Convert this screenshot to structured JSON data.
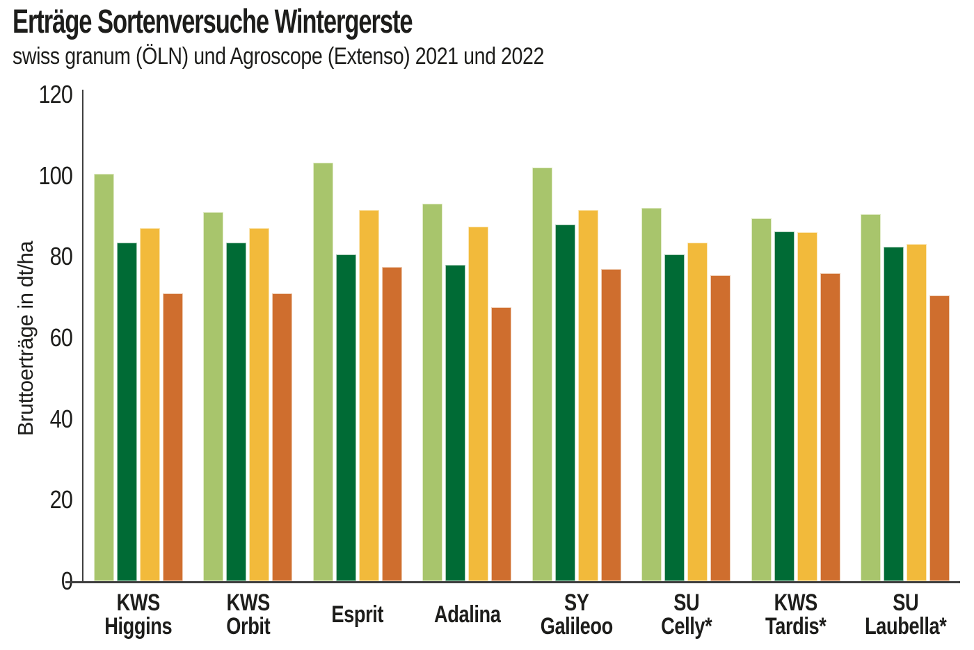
{
  "header": {
    "title": "Erträge Sortenversuche Wintergerste",
    "subtitle": "swiss granum (ÖLN) und Agroscope (Extenso) 2021 und 2022"
  },
  "colors": {
    "background": "#ffffff",
    "text": "#1d1d1b",
    "axis": "#3f3f3f",
    "bar_light_green": "#a8c56c",
    "bar_dark_green": "#006b35",
    "bar_yellow": "#f2ba3b",
    "bar_orange": "#cf6e2e"
  },
  "chart_data": {
    "type": "bar",
    "title": "Erträge Sortenversuche Wintergerste",
    "subtitle": "swiss granum (ÖLN) und Agroscope (Extenso) 2021 und 2022",
    "xlabel": "",
    "ylabel": "Bruttoerträge in dt/ha",
    "ylim": [
      0,
      120
    ],
    "yticks": [
      0,
      20,
      40,
      60,
      80,
      100,
      120
    ],
    "grid": false,
    "legend_position": "none",
    "categories": [
      "KWS Higgins",
      "KWS Orbit",
      "Esprit",
      "Adalina",
      "SY Galileoo",
      "SU Celly*",
      "KWS Tardis*",
      "SU Laubella*"
    ],
    "category_label_lines": [
      [
        "KWS",
        "Higgins"
      ],
      [
        "KWS",
        "Orbit"
      ],
      [
        "Esprit"
      ],
      [
        "Adalina"
      ],
      [
        "SY",
        "Galileoo"
      ],
      [
        "SU",
        "Celly*"
      ],
      [
        "KWS",
        "Tardis*"
      ],
      [
        "SU",
        "Laubella*"
      ]
    ],
    "series": [
      {
        "name": "series-1-light-green",
        "color": "#a8c56c",
        "values": [
          100.5,
          91.0,
          103.2,
          93.0,
          102.0,
          92.0,
          89.5,
          90.5
        ]
      },
      {
        "name": "series-2-dark-green",
        "color": "#006b35",
        "values": [
          83.5,
          83.5,
          80.5,
          78.0,
          88.0,
          80.5,
          86.3,
          82.5
        ]
      },
      {
        "name": "series-3-yellow",
        "color": "#f2ba3b",
        "values": [
          87.0,
          87.0,
          91.5,
          87.5,
          91.5,
          83.5,
          86.0,
          83.2
        ]
      },
      {
        "name": "series-4-orange",
        "color": "#cf6e2e",
        "values": [
          71.0,
          71.0,
          77.5,
          67.5,
          77.0,
          75.5,
          76.0,
          70.5
        ]
      }
    ]
  }
}
